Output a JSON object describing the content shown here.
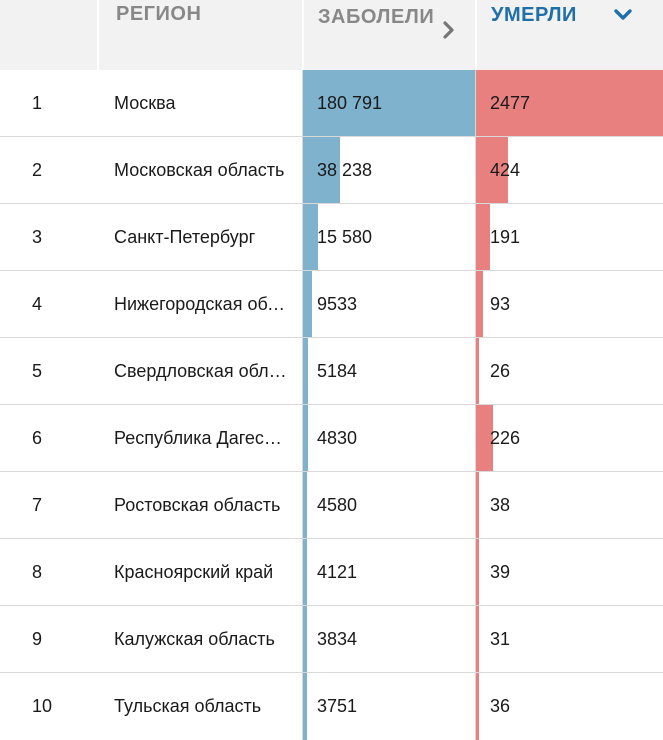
{
  "colors": {
    "header_bg": "#f2f2f2",
    "header_text": "#888888",
    "active_header": "#1f6fa8",
    "cases_bar": "#7fb2cc",
    "deaths_bar": "#e98080"
  },
  "header": {
    "region": "РЕГИОН",
    "cases": "ЗАБОЛЕЛИ",
    "deaths": "УМЕРЛИ",
    "cases_icon": "chevron-right-icon",
    "deaths_icon": "chevron-down-icon"
  },
  "table": {
    "max_cases": 180791,
    "max_deaths": 2477,
    "rows": [
      {
        "rank": "1",
        "region": "Москва",
        "cases": "180 791",
        "cases_value": 180791,
        "deaths": "2477",
        "deaths_value": 2477
      },
      {
        "rank": "2",
        "region": "Московская область",
        "cases": "38 238",
        "cases_value": 38238,
        "deaths": "424",
        "deaths_value": 424
      },
      {
        "rank": "3",
        "region": "Санкт-Петербург",
        "cases": "15 580",
        "cases_value": 15580,
        "deaths": "191",
        "deaths_value": 191
      },
      {
        "rank": "4",
        "region": "Нижегородская область",
        "cases": "9533",
        "cases_value": 9533,
        "deaths": "93",
        "deaths_value": 93
      },
      {
        "rank": "5",
        "region": "Свердловская область",
        "cases": "5184",
        "cases_value": 5184,
        "deaths": "26",
        "deaths_value": 26
      },
      {
        "rank": "6",
        "region": "Республика Дагестан",
        "cases": "4830",
        "cases_value": 4830,
        "deaths": "226",
        "deaths_value": 226
      },
      {
        "rank": "7",
        "region": "Ростовская область",
        "cases": "4580",
        "cases_value": 4580,
        "deaths": "38",
        "deaths_value": 38
      },
      {
        "rank": "8",
        "region": "Красноярский край",
        "cases": "4121",
        "cases_value": 4121,
        "deaths": "39",
        "deaths_value": 39
      },
      {
        "rank": "9",
        "region": "Калужская область",
        "cases": "3834",
        "cases_value": 3834,
        "deaths": "31",
        "deaths_value": 31
      },
      {
        "rank": "10",
        "region": "Тульская область",
        "cases": "3751",
        "cases_value": 3751,
        "deaths": "36",
        "deaths_value": 36
      }
    ]
  }
}
